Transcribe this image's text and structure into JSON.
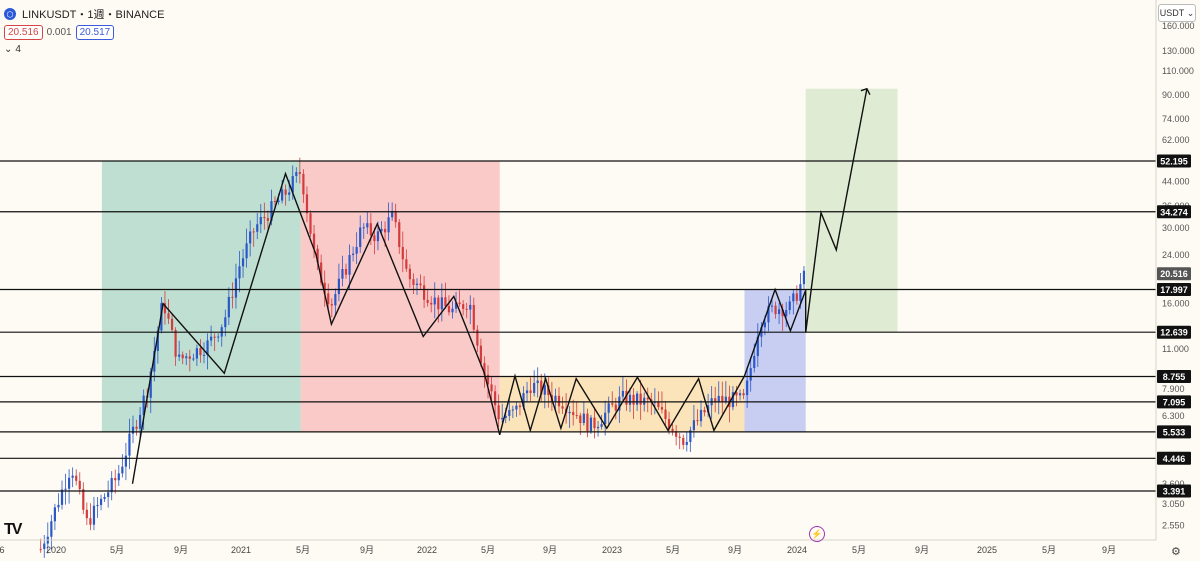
{
  "header": {
    "symbol": "LINKUSDT・1週・BINANCE",
    "logo_icon": "chainlink-logo-icon",
    "sell_price": "20.516",
    "spread": "0.001",
    "buy_price": "20.517",
    "indicator_count": "4",
    "currency_unit": "USDT"
  },
  "chart_data": {
    "type": "candlestick",
    "x_labels": [
      "6",
      "2020",
      "5月",
      "9月",
      "2021",
      "5月",
      "9月",
      "2022",
      "5月",
      "9月",
      "2023",
      "5月",
      "9月",
      "2024",
      "5月",
      "9月",
      "2025",
      "5月",
      "9月"
    ],
    "y_scale": "log",
    "y_ticks": [
      "160.000",
      "130.000",
      "110.000",
      "90.000",
      "74.000",
      "62.000",
      "44.000",
      "36.000",
      "30.000",
      "24.000",
      "16.000",
      "11.000",
      "7.900",
      "6.300",
      "3.600",
      "3.050",
      "2.550"
    ],
    "levels": [
      {
        "value": 52.195,
        "label": "52.195"
      },
      {
        "value": 34.274,
        "label": "34.274"
      },
      {
        "value": 17.997,
        "label": "17.997"
      },
      {
        "value": 12.639,
        "label": "12.639"
      },
      {
        "value": 8.755,
        "label": "8.755"
      },
      {
        "value": 7.095,
        "label": "7.095"
      },
      {
        "value": 5.533,
        "label": "5.533"
      },
      {
        "value": 4.446,
        "label": "4.446"
      },
      {
        "value": 3.391,
        "label": "3.391"
      }
    ],
    "current_price": {
      "value": 20.516,
      "label": "20.516"
    },
    "zones": [
      {
        "from": "2020-04",
        "to": "2021-05",
        "low": 5.533,
        "high": 52.195,
        "color": "#b7dccd"
      },
      {
        "from": "2021-05",
        "to": "2022-06",
        "low": 5.533,
        "high": 52.195,
        "color": "#f9c4c4"
      },
      {
        "from": "2022-06",
        "to": "2023-10",
        "low": 5.533,
        "high": 8.755,
        "color": "#fbe1b4"
      },
      {
        "from": "2023-10",
        "to": "2024-02",
        "low": 5.533,
        "high": 17.997,
        "color": "#c2c9f2"
      },
      {
        "from": "2024-02",
        "to": "2024-08",
        "low": 12.639,
        "high": 95,
        "color": "#dbe9cf"
      }
    ],
    "colors": {
      "up": "#2b58c9",
      "down": "#d23c3c",
      "level_line": "#111111",
      "path": "#111111"
    }
  }
}
